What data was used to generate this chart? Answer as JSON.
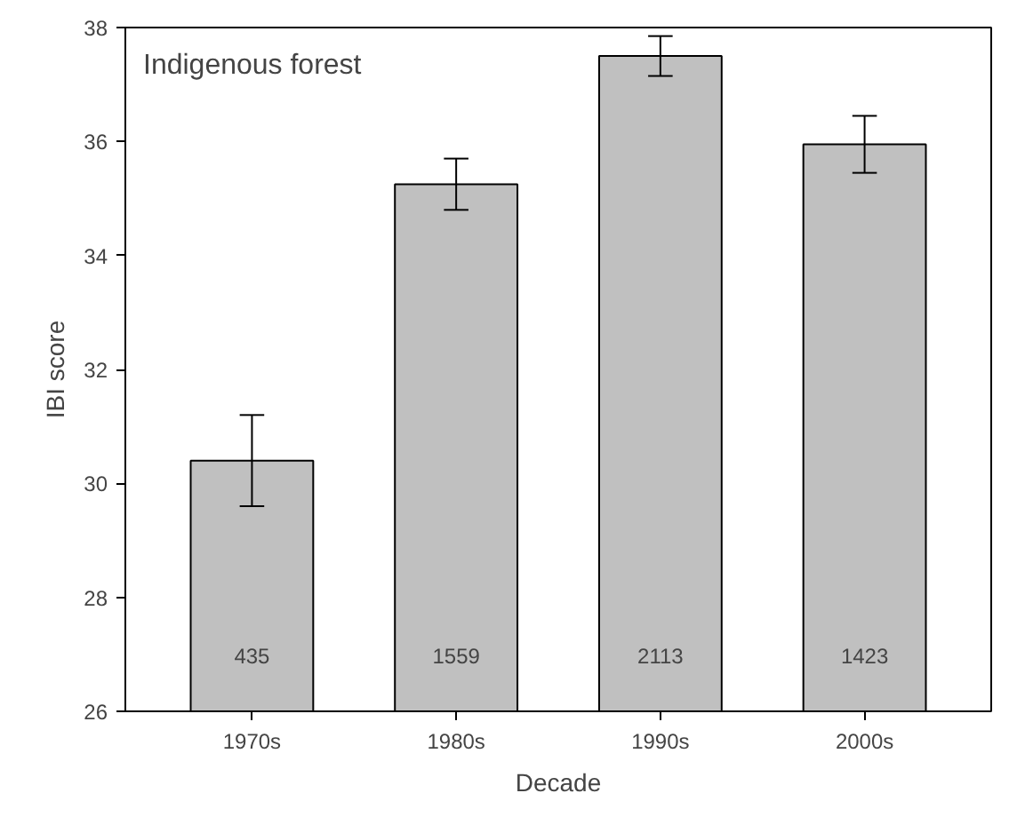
{
  "chart_data": {
    "type": "bar",
    "title": "Indigenous forest",
    "xlabel": "Decade",
    "ylabel": "IBI score",
    "categories": [
      "1970s",
      "1980s",
      "1990s",
      "2000s"
    ],
    "values": [
      30.4,
      35.25,
      37.5,
      35.95
    ],
    "errors": [
      [
        29.6,
        31.2
      ],
      [
        34.8,
        35.7
      ],
      [
        37.15,
        37.85
      ],
      [
        35.45,
        36.45
      ]
    ],
    "color": "#c0c0c0",
    "ylim": [
      26,
      38
    ],
    "yticks": [
      26,
      28,
      30,
      32,
      34,
      36,
      38
    ],
    "grid": false,
    "annotations": [
      "435",
      "1559",
      "2113",
      "1423"
    ]
  }
}
